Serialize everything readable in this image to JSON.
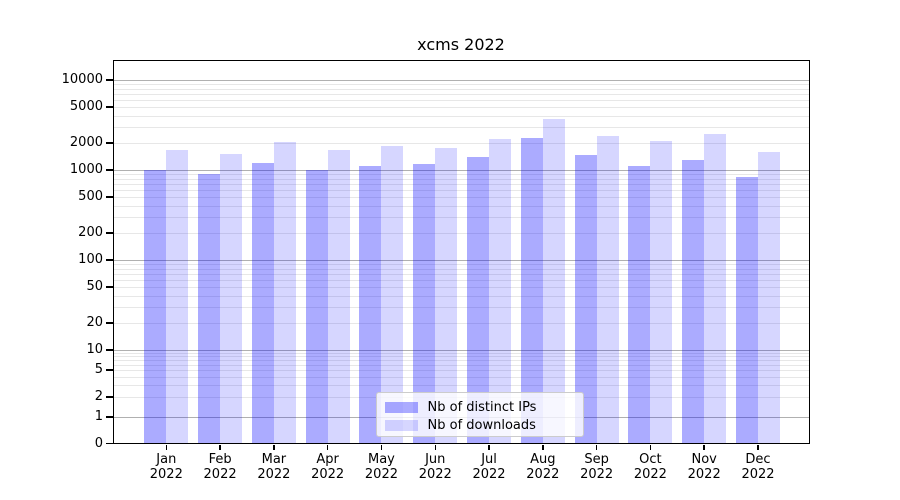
{
  "chart_data": {
    "type": "bar",
    "title": "xcms 2022",
    "xlabel": "",
    "ylabel": "",
    "yscale": "symlog",
    "grid": true,
    "legend_position": "lower center",
    "categories": [
      "Jan 2022",
      "Feb 2022",
      "Mar 2022",
      "Apr 2022",
      "May 2022",
      "Jun 2022",
      "Jul 2022",
      "Aug 2022",
      "Sep 2022",
      "Oct 2022",
      "Nov 2022",
      "Dec 2022"
    ],
    "yticks": [
      10000,
      5000,
      2000,
      1000,
      500,
      200,
      100,
      50,
      20,
      10,
      5,
      2,
      1,
      0
    ],
    "ylim": [
      0,
      16000
    ],
    "series": [
      {
        "name": "Nb of distinct IPs",
        "color": "#0000FF",
        "alpha": 0.33,
        "values": [
          1000,
          910,
          1190,
          1000,
          1110,
          1160,
          1400,
          2290,
          1450,
          1120,
          1290,
          840
        ]
      },
      {
        "name": "Nb of downloads",
        "color": "#0000FF",
        "alpha": 0.16,
        "values": [
          1680,
          1500,
          2030,
          1670,
          1850,
          1760,
          2230,
          3700,
          2390,
          2120,
          2500,
          1600
        ]
      }
    ],
    "colors": {
      "major_grid": "#B0B0B0",
      "minor_grid": "#E7E7E7",
      "frame": "#000000",
      "background": "#FFFFFF"
    }
  }
}
